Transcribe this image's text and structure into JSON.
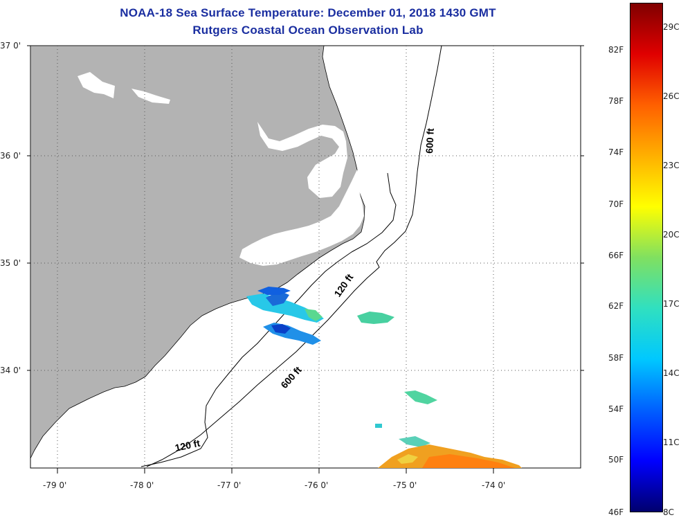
{
  "header": {
    "title_line1": "NOAA-18 Sea Surface Temperature:  December 01, 2018 1430 GMT",
    "title_line2": "Rutgers Coastal Ocean Observation Lab"
  },
  "map": {
    "lat_labels": [
      "37 0'",
      "36 0'",
      "35 0'",
      "34 0'"
    ],
    "lon_labels": [
      "-79 0'",
      "-78 0'",
      "-77 0'",
      "-76 0'",
      "-75 0'",
      "-74 0'"
    ],
    "contour_labels": {
      "c600_north": "600 ft",
      "c120_mid": "120 ft",
      "c600_mid": "600 ft",
      "c120_south": "120 ft"
    },
    "colors": {
      "land": "#b3b3b3",
      "grid": "#555555",
      "contour": "#000000"
    }
  },
  "colorbar": {
    "fahrenheit": [
      "82F",
      "78F",
      "74F",
      "70F",
      "66F",
      "62F",
      "58F",
      "54F",
      "50F",
      "46F"
    ],
    "celsius": [
      "29C",
      "26C",
      "23C",
      "20C",
      "17C",
      "14C",
      "11C",
      "8C"
    ],
    "gradient": [
      "#00006e",
      "#0000ff",
      "#0060ff",
      "#00c8ff",
      "#30e0c0",
      "#80e060",
      "#ffff00",
      "#ffb000",
      "#ff6000",
      "#e00000",
      "#800000"
    ]
  }
}
